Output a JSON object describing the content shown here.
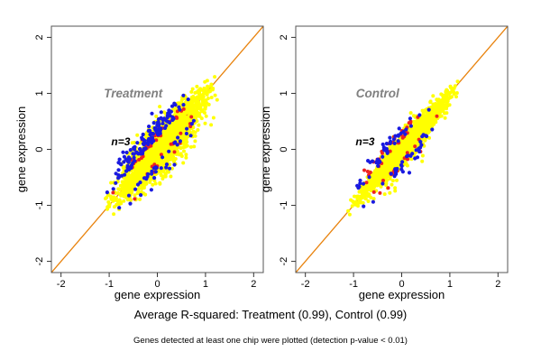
{
  "figure": {
    "bg": "#ffffff",
    "captions": {
      "summary": "Average R-squared: Treatment (0.99), Control (0.99)",
      "footnote": "Genes detected at least one chip were plotted (detection p-value < 0.01)"
    }
  },
  "chart_data": [
    {
      "type": "scatter",
      "panel": "treatment",
      "title": "Treatment",
      "title_color": "#808080",
      "title_pos": [
        -0.5,
        0.93
      ],
      "annotation": "n=3",
      "annotation_color": "#000000",
      "annotation_pos": [
        -0.76,
        0.07
      ],
      "xlabel": "gene expression",
      "ylabel": "gene expression",
      "xlim": [
        -2.2,
        2.2
      ],
      "ylim": [
        -2.2,
        2.2
      ],
      "xticks": [
        -2,
        -1,
        0,
        1,
        2
      ],
      "yticks": [
        -2,
        -1,
        0,
        1,
        2
      ],
      "grid": false,
      "box_color": "#555555",
      "r_squared": 0.99,
      "diagonal": {
        "slope": 1,
        "intercept": 0,
        "color": "#e8820c"
      },
      "series": [
        {
          "name": "detected-genes",
          "color": "#ffff00",
          "n": 2300,
          "seed": 42,
          "t_range": [
            -1.17,
            1.3
          ],
          "spread": 0.155,
          "droop_frac": 0.18,
          "droop_amt": 0.35,
          "radius": 2.0
        },
        {
          "name": "outlier-red",
          "color": "#ee2222",
          "n": 55,
          "seed": 7,
          "t_range": [
            -1.05,
            0.95
          ],
          "edge": 0.12,
          "jitter": 0.1,
          "above_frac": 0.72,
          "radius": 2.0
        },
        {
          "name": "outlier-blue",
          "color": "#1a1ae0",
          "n": 175,
          "seed": 13,
          "t_range": [
            -1.08,
            1.02
          ],
          "edge": 0.16,
          "jitter": 0.14,
          "above_frac": 0.8,
          "radius": 2.1
        }
      ]
    },
    {
      "type": "scatter",
      "panel": "control",
      "title": "Control",
      "title_color": "#808080",
      "title_pos": [
        -0.5,
        0.93
      ],
      "annotation": "n=3",
      "annotation_color": "#000000",
      "annotation_pos": [
        -0.76,
        0.07
      ],
      "xlabel": "gene expression",
      "ylabel": "gene expression",
      "xlim": [
        -2.2,
        2.2
      ],
      "ylim": [
        -2.2,
        2.2
      ],
      "xticks": [
        -2,
        -1,
        0,
        1,
        2
      ],
      "yticks": [
        -2,
        -1,
        0,
        1,
        2
      ],
      "grid": false,
      "box_color": "#555555",
      "r_squared": 0.99,
      "diagonal": {
        "slope": 1,
        "intercept": 0,
        "color": "#e8820c"
      },
      "series": [
        {
          "name": "detected-genes",
          "color": "#ffff00",
          "n": 2100,
          "seed": 101,
          "t_range": [
            -1.17,
            1.26
          ],
          "spread": 0.085,
          "droop_frac": 0.05,
          "droop_amt": 0.3,
          "radius": 2.0
        },
        {
          "name": "outlier-red",
          "color": "#ee2222",
          "n": 55,
          "seed": 23,
          "t_range": [
            -1.05,
            0.92
          ],
          "edge": 0.12,
          "jitter": 0.1,
          "above_frac": 0.5,
          "radius": 2.0
        },
        {
          "name": "outlier-blue",
          "color": "#1a1ae0",
          "n": 80,
          "seed": 77,
          "t_range": [
            -1.08,
            0.9
          ],
          "edge": 0.14,
          "jitter": 0.11,
          "above_frac": 0.55,
          "radius": 2.1
        }
      ]
    }
  ]
}
